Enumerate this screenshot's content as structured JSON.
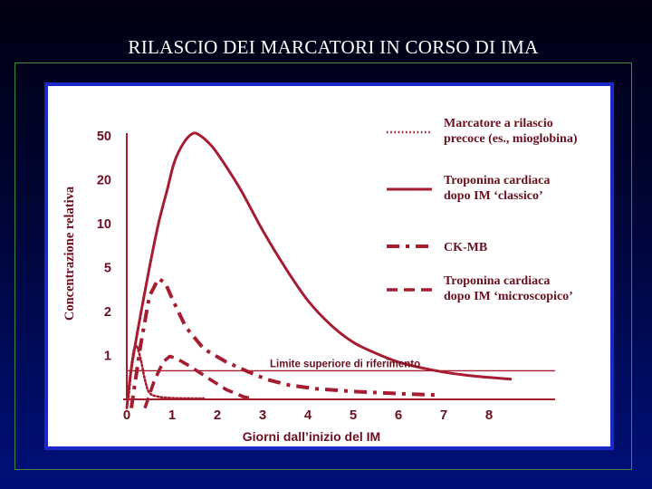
{
  "slide": {
    "title": "RILASCIO DEI MARCATORI IN CORSO DI IMA"
  },
  "colors": {
    "curve": "#a61c31",
    "text": "#6b1020",
    "panel_border": "#1a28c8",
    "frame": "#3d8a3d"
  },
  "chart_data": {
    "type": "line",
    "title": "",
    "xlabel": "Giorni dall’inizio del IM",
    "ylabel": "Concentrazione relativa",
    "x_ticks": [
      0,
      1,
      2,
      3,
      4,
      5,
      6,
      7,
      8
    ],
    "y_ticks": [
      1,
      2,
      5,
      10,
      20,
      50
    ],
    "y_scale": "categorical-nonlinear",
    "xlim": [
      0,
      8.5
    ],
    "grid": false,
    "legend_position": "top-right",
    "reference_line": {
      "label": "Limite superiore di riferimento",
      "y": 0.65
    },
    "series": [
      {
        "name": "Marcatore a rilascio precoce (es., mioglobina)",
        "style": "dotted",
        "points": [
          [
            0.0,
            -0.2
          ],
          [
            0.05,
            0.15
          ],
          [
            0.12,
            0.9
          ],
          [
            0.2,
            1.22
          ],
          [
            0.3,
            0.95
          ],
          [
            0.4,
            0.45
          ],
          [
            0.5,
            0.15
          ],
          [
            0.7,
            0.06
          ],
          [
            1.0,
            0.03
          ],
          [
            1.5,
            0.02
          ],
          [
            1.7,
            0.02
          ]
        ]
      },
      {
        "name": "Troponina cardiaca dopo IM ‘classico’",
        "style": "solid",
        "points": [
          [
            0.0,
            -0.2
          ],
          [
            0.1,
            0.7
          ],
          [
            0.3,
            1.9
          ],
          [
            0.5,
            3.0
          ],
          [
            0.7,
            4.0
          ],
          [
            0.9,
            4.8
          ],
          [
            1.05,
            5.4
          ],
          [
            1.25,
            5.83
          ],
          [
            1.45,
            6.05
          ],
          [
            1.6,
            6.02
          ],
          [
            1.8,
            5.85
          ],
          [
            2.0,
            5.6
          ],
          [
            2.5,
            4.8
          ],
          [
            3.0,
            3.85
          ],
          [
            3.5,
            3.0
          ],
          [
            4.0,
            2.25
          ],
          [
            4.5,
            1.7
          ],
          [
            5.0,
            1.3
          ],
          [
            5.5,
            1.05
          ],
          [
            6.0,
            0.85
          ],
          [
            6.5,
            0.72
          ],
          [
            7.0,
            0.62
          ],
          [
            7.5,
            0.55
          ],
          [
            8.0,
            0.5
          ],
          [
            8.5,
            0.46
          ]
        ]
      },
      {
        "name": "CK-MB",
        "style": "dash-dot",
        "points": [
          [
            0.1,
            -0.2
          ],
          [
            0.3,
            1.2
          ],
          [
            0.5,
            2.35
          ],
          [
            0.7,
            2.75
          ],
          [
            0.85,
            2.65
          ],
          [
            1.0,
            2.3
          ],
          [
            1.3,
            1.65
          ],
          [
            1.7,
            1.15
          ],
          [
            2.2,
            0.85
          ],
          [
            2.7,
            0.62
          ],
          [
            3.1,
            0.45
          ],
          [
            3.6,
            0.32
          ],
          [
            4.2,
            0.24
          ],
          [
            5.0,
            0.18
          ],
          [
            6.0,
            0.13
          ],
          [
            6.8,
            0.1
          ]
        ]
      },
      {
        "name": "Troponina cardiaca dopo IM ‘microscopico’",
        "style": "dashed",
        "points": [
          [
            0.4,
            -0.2
          ],
          [
            0.6,
            0.4
          ],
          [
            0.8,
            0.85
          ],
          [
            0.95,
            0.98
          ],
          [
            1.1,
            0.93
          ],
          [
            1.4,
            0.75
          ],
          [
            1.8,
            0.48
          ],
          [
            2.2,
            0.22
          ],
          [
            2.6,
            0.05
          ],
          [
            2.8,
            0.02
          ]
        ]
      }
    ]
  }
}
